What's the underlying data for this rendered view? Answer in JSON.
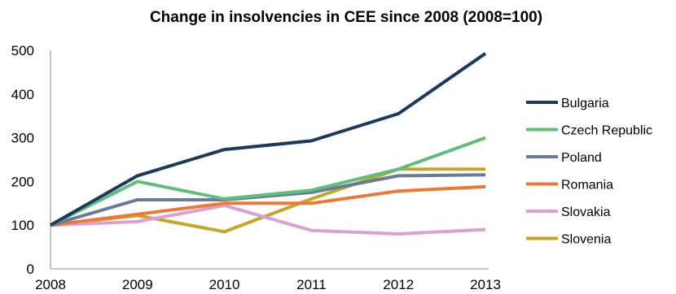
{
  "chart_data": {
    "type": "line",
    "title": "Change in insolvencies in CEE since 2008 (2008=100)",
    "xlabel": "",
    "ylabel": "",
    "x": [
      2008,
      2009,
      2010,
      2011,
      2012,
      2013
    ],
    "x_tick_labels": [
      "2008",
      "2009",
      "2010",
      "2011",
      "2012",
      "2013"
    ],
    "ylim": [
      0,
      500
    ],
    "y_ticks": [
      0,
      100,
      200,
      300,
      400,
      500
    ],
    "y_tick_labels": [
      "0",
      "100",
      "200",
      "300",
      "400",
      "500"
    ],
    "grid": false,
    "legend_position": "right",
    "series": [
      {
        "name": "Bulgaria",
        "color": "#1b3a5c",
        "values": [
          100,
          213,
          273,
          293,
          355,
          493
        ]
      },
      {
        "name": "Czech Republic",
        "color": "#5fbf7a",
        "values": [
          100,
          200,
          160,
          180,
          228,
          300
        ]
      },
      {
        "name": "Poland",
        "color": "#6a7a9a",
        "values": [
          100,
          158,
          158,
          175,
          213,
          215
        ]
      },
      {
        "name": "Romania",
        "color": "#ee7733",
        "values": [
          100,
          125,
          150,
          150,
          178,
          188
        ]
      },
      {
        "name": "Slovakia",
        "color": "#d9a0d6",
        "values": [
          100,
          108,
          145,
          88,
          80,
          90
        ]
      },
      {
        "name": "Slovenia",
        "color": "#c7a627",
        "values": [
          100,
          122,
          85,
          160,
          228,
          228
        ]
      }
    ]
  }
}
